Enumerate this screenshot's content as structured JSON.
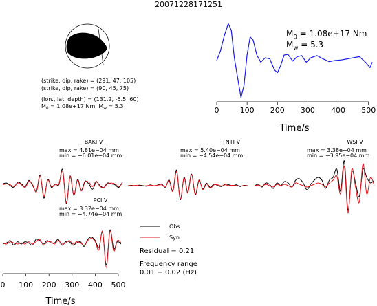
{
  "event_id": "20071228171251",
  "mechanism": {
    "line1": "(strike, dip, rake) = (291, 47, 105)",
    "line2": "(strike, dip, rake) = (90, 45, 75)",
    "line3": "(lon., lat, depth) = (131.2, -5.5, 60)",
    "m0_prefix": "M",
    "m0_sub": "0",
    "m0_value": " = 1.08e+17 Nm, M",
    "mw_sub": "w",
    "mw_value": " = 5.3"
  },
  "stf_annotation": {
    "m0_prefix": "M",
    "m0_sub": "0",
    "m0_text": " = 1.08e+17 Nm",
    "mw_prefix": "M",
    "mw_sub": "w",
    "mw_text": " = 5.3"
  },
  "legend": {
    "obs": "Obs.",
    "syn": "Syn.",
    "residual": "Residual = 0.21",
    "freq_title": "Frequency range",
    "freq_value": "0.01 − 0.02 (Hz)"
  },
  "colors": {
    "observed": "#000000",
    "synthetic": "#e8141b",
    "stf": "#1a1aee"
  },
  "chart_data": [
    {
      "type": "line",
      "id": "source-time-function",
      "xlabel": "Time/s",
      "xticks": [
        0,
        100,
        200,
        300,
        400,
        500
      ],
      "xlim": [
        0,
        512
      ],
      "x": [
        0,
        12,
        25,
        38,
        48,
        58,
        70,
        80,
        90,
        100,
        110,
        120,
        132,
        145,
        160,
        175,
        190,
        200,
        210,
        222,
        235,
        250,
        265,
        280,
        295,
        310,
        330,
        350,
        370,
        390,
        410,
        430,
        450,
        470,
        490,
        505,
        512
      ],
      "values": [
        0.25,
        0.42,
        0.7,
        0.92,
        0.8,
        0.3,
        -0.1,
        -0.42,
        -0.2,
        0.35,
        0.68,
        0.62,
        0.35,
        0.22,
        0.3,
        0.28,
        0.08,
        0.03,
        0.15,
        0.35,
        0.36,
        0.24,
        0.32,
        0.34,
        0.22,
        0.3,
        0.34,
        0.28,
        0.23,
        0.25,
        0.26,
        0.28,
        0.3,
        0.32,
        0.22,
        0.12,
        0.22
      ]
    },
    {
      "type": "line",
      "id": "baki",
      "station": "BAKI V",
      "max_label": "max = 4.81e−04 mm",
      "min_label": "min = −6.01e−04 mm",
      "series": [
        {
          "name": "Obs.",
          "values": [
            0.1,
            0.15,
            0.0,
            -0.1,
            0.2,
            0.1,
            -0.05,
            0.3,
            0.0,
            -0.3,
            0.6,
            -0.7,
            0.35,
            -0.1,
            0.1,
            0.05,
            0.9,
            -1.0,
            0.5,
            -0.55,
            0.35,
            -0.25,
            0.25,
            0.1,
            -0.2,
            0.2,
            0.0,
            -0.1,
            0.15,
            0.1,
            0.05,
            -0.1,
            0.2
          ]
        },
        {
          "name": "Syn.",
          "values": [
            0.05,
            0.1,
            0.05,
            -0.05,
            0.15,
            0.05,
            -0.1,
            0.25,
            0.05,
            -0.35,
            0.55,
            -0.6,
            0.3,
            -0.05,
            0.05,
            0.1,
            0.8,
            -0.95,
            0.55,
            -0.5,
            0.3,
            -0.3,
            0.2,
            0.2,
            -0.05,
            0.25,
            -0.05,
            -0.1,
            0.1,
            0.15,
            0.1,
            -0.05,
            0.15
          ]
        }
      ]
    },
    {
      "type": "line",
      "id": "tnti",
      "station": "TNTI V",
      "max_label": "max = 5.40e−04 mm",
      "min_label": "min = −4.54e−04 mm",
      "series": [
        {
          "name": "Obs.",
          "values": [
            0.0,
            0.02,
            -0.02,
            0.03,
            0.0,
            -0.03,
            0.05,
            -0.02,
            0.05,
            0.1,
            -0.1,
            0.35,
            -0.3,
            0.95,
            -0.85,
            0.5,
            -0.4,
            0.7,
            -0.55,
            0.3,
            -0.2,
            0.15,
            -0.1,
            0.1,
            0.0,
            -0.05,
            0.1,
            0.05,
            0.0,
            0.05,
            -0.05,
            0.02,
            0.0
          ]
        },
        {
          "name": "Syn.",
          "values": [
            0.0,
            0.0,
            0.02,
            0.0,
            -0.02,
            0.0,
            0.03,
            0.0,
            0.03,
            0.05,
            -0.08,
            0.3,
            -0.35,
            0.85,
            -0.8,
            0.45,
            -0.45,
            0.65,
            -0.5,
            0.35,
            -0.25,
            0.1,
            -0.15,
            0.05,
            0.05,
            -0.02,
            0.05,
            0.0,
            0.02,
            0.0,
            -0.02,
            0.0,
            0.0
          ]
        }
      ]
    },
    {
      "type": "line",
      "id": "wsi",
      "station": "WSI V",
      "max_label": "max = 3.38e−04 mm",
      "min_label": "min = −3.95e−04 mm",
      "series": [
        {
          "name": "Obs.",
          "values": [
            0.0,
            0.05,
            -0.05,
            0.1,
            0.05,
            -0.1,
            0.1,
            0.0,
            0.15,
            0.1,
            -0.05,
            0.2,
            0.25,
            0.1,
            -0.15,
            0.05,
            0.2,
            0.3,
            0.2,
            -0.1,
            0.2,
            0.3,
            0.6,
            -0.2,
            0.9,
            -0.9,
            0.5,
            0.1,
            -0.4,
            0.6,
            0.3,
            0.1,
            0.2
          ]
        },
        {
          "name": "Syn.",
          "values": [
            0.0,
            0.02,
            -0.02,
            0.05,
            0.0,
            -0.05,
            0.05,
            0.0,
            0.05,
            0.0,
            -0.05,
            0.1,
            0.05,
            0.0,
            -0.05,
            0.0,
            0.05,
            0.1,
            0.05,
            -0.05,
            0.1,
            0.2,
            0.35,
            -0.3,
            0.7,
            -1.0,
            0.6,
            -0.05,
            -0.6,
            0.8,
            -0.3,
            0.3,
            0.0
          ]
        }
      ]
    },
    {
      "type": "line",
      "id": "pci",
      "station": "PCI V",
      "max_label": "max = 3.32e−04 mm",
      "min_label": "min = −4.74e−04 mm",
      "xlabel": "Time/s",
      "xticks": [
        0,
        100,
        200,
        300,
        400,
        500
      ],
      "xlim": [
        0,
        512
      ],
      "series": [
        {
          "name": "Obs.",
          "values": [
            0.0,
            0.05,
            0.15,
            -0.05,
            0.1,
            0.0,
            0.1,
            0.05,
            -0.05,
            0.2,
            0.15,
            0.0,
            0.15,
            0.05,
            0.05,
            0.2,
            -0.05,
            0.1,
            0.1,
            -0.05,
            0.05,
            0.1,
            -0.1,
            0.2,
            0.3,
            0.15,
            -0.15,
            0.5,
            -0.9,
            0.6,
            -0.2,
            0.1,
            0.0
          ]
        },
        {
          "name": "Syn.",
          "values": [
            0.05,
            0.0,
            0.1,
            0.05,
            0.0,
            0.05,
            0.0,
            0.1,
            0.0,
            0.1,
            0.2,
            -0.05,
            0.1,
            0.1,
            0.0,
            0.15,
            0.0,
            0.05,
            0.15,
            0.0,
            0.1,
            0.05,
            -0.05,
            0.15,
            0.25,
            0.1,
            -0.25,
            0.55,
            -1.0,
            0.55,
            -0.3,
            0.15,
            0.05
          ]
        }
      ]
    }
  ]
}
